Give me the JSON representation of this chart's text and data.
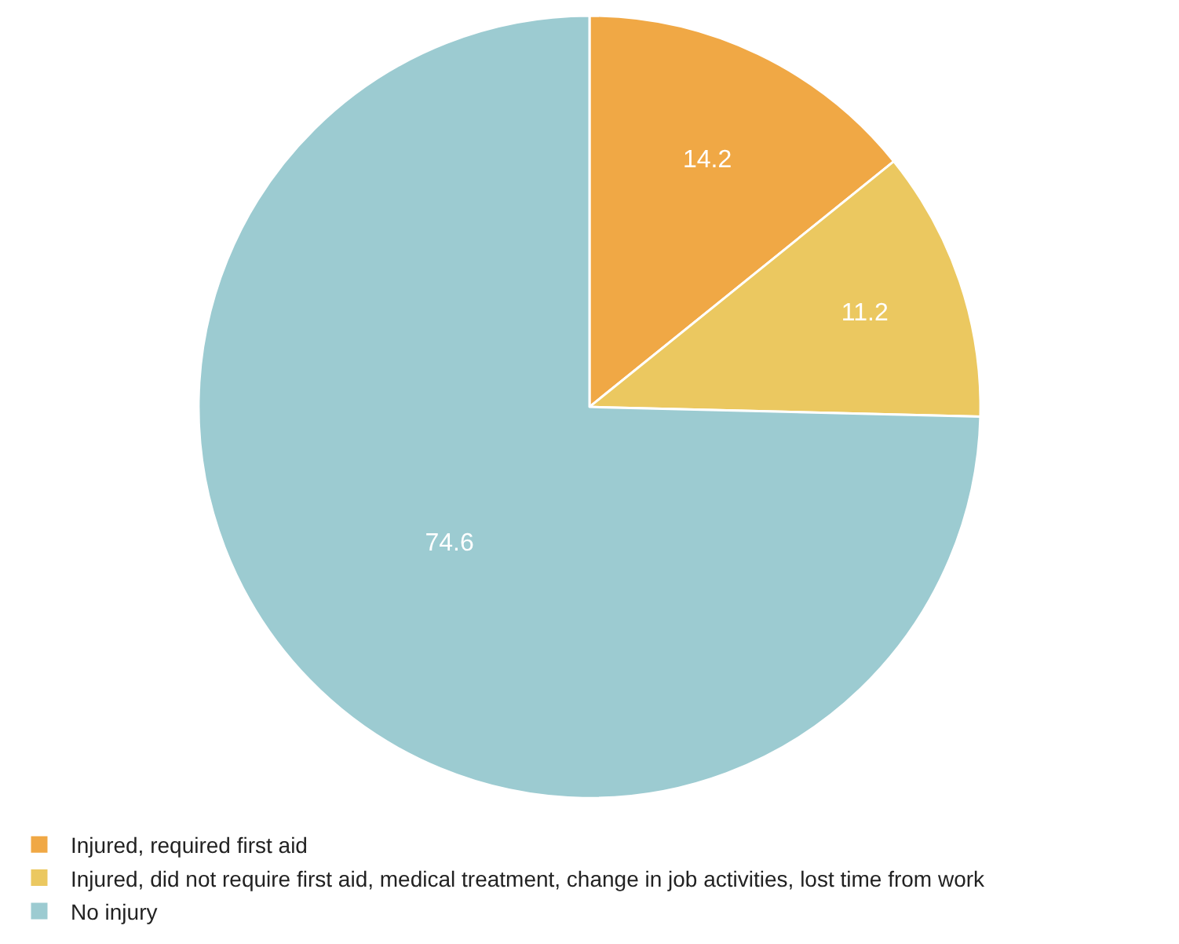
{
  "chart_data": {
    "type": "pie",
    "categories": [
      "Injured, required first aid",
      "Injured, did not require first aid, medical treatment, change in job activities, lost time from work",
      "No injury"
    ],
    "values": [
      14.2,
      11.2,
      74.6
    ],
    "colors": [
      "#f0a845",
      "#ebc860",
      "#9ccbd1"
    ],
    "data_labels": true,
    "legend": "bottom left"
  }
}
